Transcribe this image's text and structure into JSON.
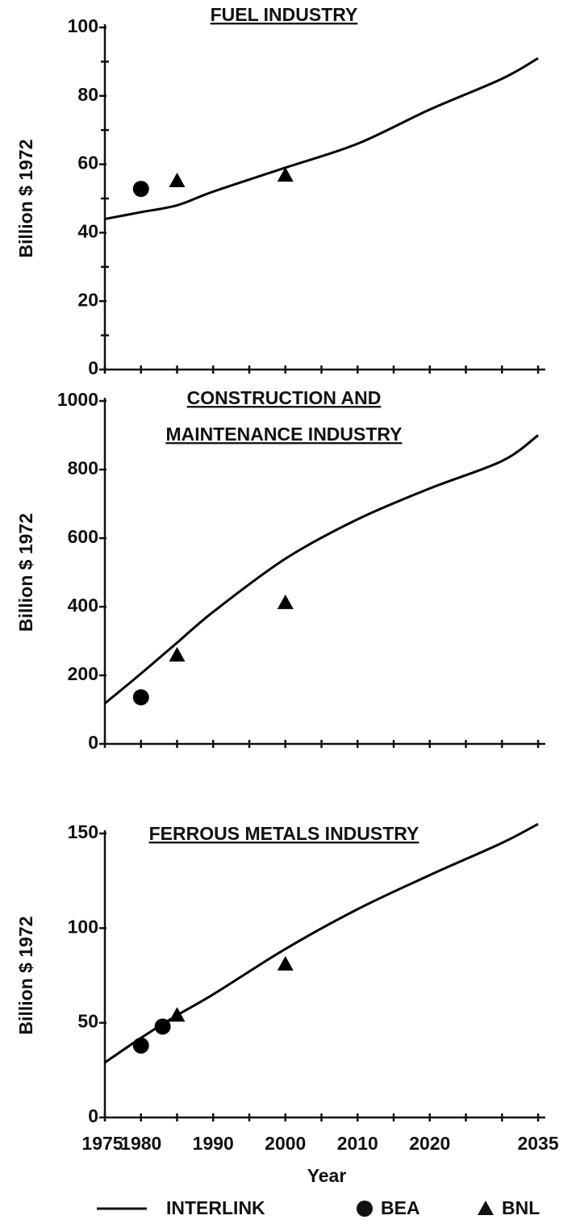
{
  "chart_data": [
    {
      "type": "line",
      "title": [
        "FUEL INDUSTRY"
      ],
      "ylabel": "Billion $ 1972",
      "xlim": [
        1975,
        2036
      ],
      "ylim": [
        0,
        100
      ],
      "yticks": [
        0,
        20,
        40,
        60,
        80,
        100
      ],
      "yminor": [
        10,
        30,
        50,
        70,
        90
      ],
      "xminor": [
        1975,
        1980,
        1985,
        1990,
        1995,
        2000,
        2005,
        2010,
        2015,
        2020,
        2025,
        2030,
        2035
      ],
      "series": [
        {
          "marker": "line",
          "color": "#000000",
          "x": [
            1975,
            1980,
            1985,
            1990,
            2000,
            2010,
            2020,
            2030,
            2035
          ],
          "values": [
            44,
            46,
            48,
            52,
            59,
            66,
            76,
            85,
            91
          ]
        },
        {
          "marker": "circle",
          "color": "#000000",
          "x": [
            1980
          ],
          "values": [
            52.8
          ]
        },
        {
          "marker": "triangle",
          "color": "#000000",
          "x": [
            1985,
            2000
          ],
          "values": [
            55.2,
            56.8
          ]
        }
      ]
    },
    {
      "type": "line",
      "title": [
        "CONSTRUCTION AND",
        "MAINTENANCE INDUSTRY"
      ],
      "ylabel": "Billion $ 1972",
      "xlim": [
        1975,
        2036
      ],
      "ylim": [
        0,
        1000
      ],
      "yticks": [
        0,
        200,
        400,
        600,
        800,
        1000
      ],
      "xminor": [
        1975,
        1980,
        1985,
        1990,
        1995,
        2000,
        2005,
        2010,
        2015,
        2020,
        2025,
        2030,
        2035
      ],
      "series": [
        {
          "marker": "line",
          "color": "#000000",
          "x": [
            1975,
            1980,
            1985,
            1990,
            2000,
            2010,
            2020,
            2030,
            2035
          ],
          "values": [
            118,
            205,
            295,
            385,
            540,
            655,
            745,
            825,
            900
          ]
        },
        {
          "marker": "circle",
          "color": "#000000",
          "x": [
            1980
          ],
          "values": [
            136
          ]
        },
        {
          "marker": "triangle",
          "color": "#000000",
          "x": [
            1985,
            2000
          ],
          "values": [
            259,
            412
          ]
        }
      ]
    },
    {
      "type": "line",
      "title": [
        "FERROUS METALS INDUSTRY"
      ],
      "ylabel": "Billion $ 1972",
      "xlabel": "Year",
      "xlim": [
        1975,
        2036
      ],
      "ylim": [
        0,
        150
      ],
      "yticks": [
        0,
        50,
        100,
        150
      ],
      "xticks": [
        1975,
        1980,
        1990,
        2000,
        2010,
        2020,
        2035
      ],
      "xminor": [
        1985,
        1995,
        2005,
        2015,
        2025,
        2030
      ],
      "series": [
        {
          "marker": "line",
          "color": "#000000",
          "x": [
            1975,
            1980,
            1985,
            1990,
            2000,
            2010,
            2020,
            2030,
            2035
          ],
          "values": [
            29,
            42,
            54,
            65,
            89,
            110,
            128,
            145,
            155
          ]
        },
        {
          "marker": "circle",
          "color": "#000000",
          "x": [
            1980,
            1983
          ],
          "values": [
            38,
            48
          ]
        },
        {
          "marker": "triangle",
          "color": "#000000",
          "x": [
            1985,
            2000
          ],
          "values": [
            54,
            81
          ]
        }
      ]
    }
  ],
  "legend": [
    {
      "name": "INTERLINK",
      "marker": "line"
    },
    {
      "name": "BEA",
      "marker": "circle"
    },
    {
      "name": "BNL",
      "marker": "triangle"
    }
  ]
}
